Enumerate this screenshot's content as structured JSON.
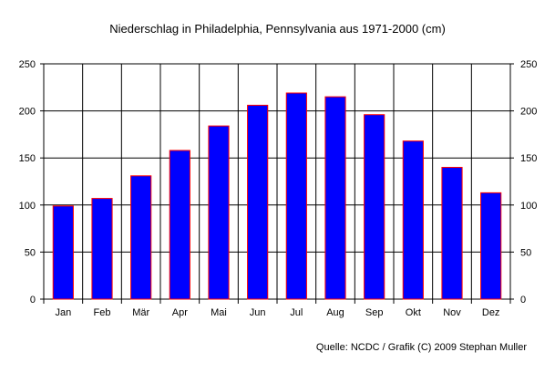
{
  "chart_data": {
    "type": "bar",
    "title": "Niederschlag in Philadelphia, Pennsylvania aus 1971-2000 (cm)",
    "xlabel": "",
    "ylabel": "",
    "categories": [
      "Jan",
      "Feb",
      "Mär",
      "Apr",
      "Mai",
      "Jun",
      "Jul",
      "Aug",
      "Sep",
      "Okt",
      "Nov",
      "Dez"
    ],
    "values": [
      99,
      107,
      131,
      158,
      184,
      206,
      219,
      215,
      196,
      168,
      140,
      113
    ],
    "ylim": [
      0,
      250
    ],
    "yticks": [
      "0",
      "50",
      "100",
      "150",
      "200",
      "250"
    ],
    "grid": true,
    "secondary_axis": true,
    "bar_color": "#0000ff",
    "bar_edge_color": "#ff0000",
    "source": "Quelle: NCDC / Grafik (C) 2009 Stephan Muller"
  }
}
